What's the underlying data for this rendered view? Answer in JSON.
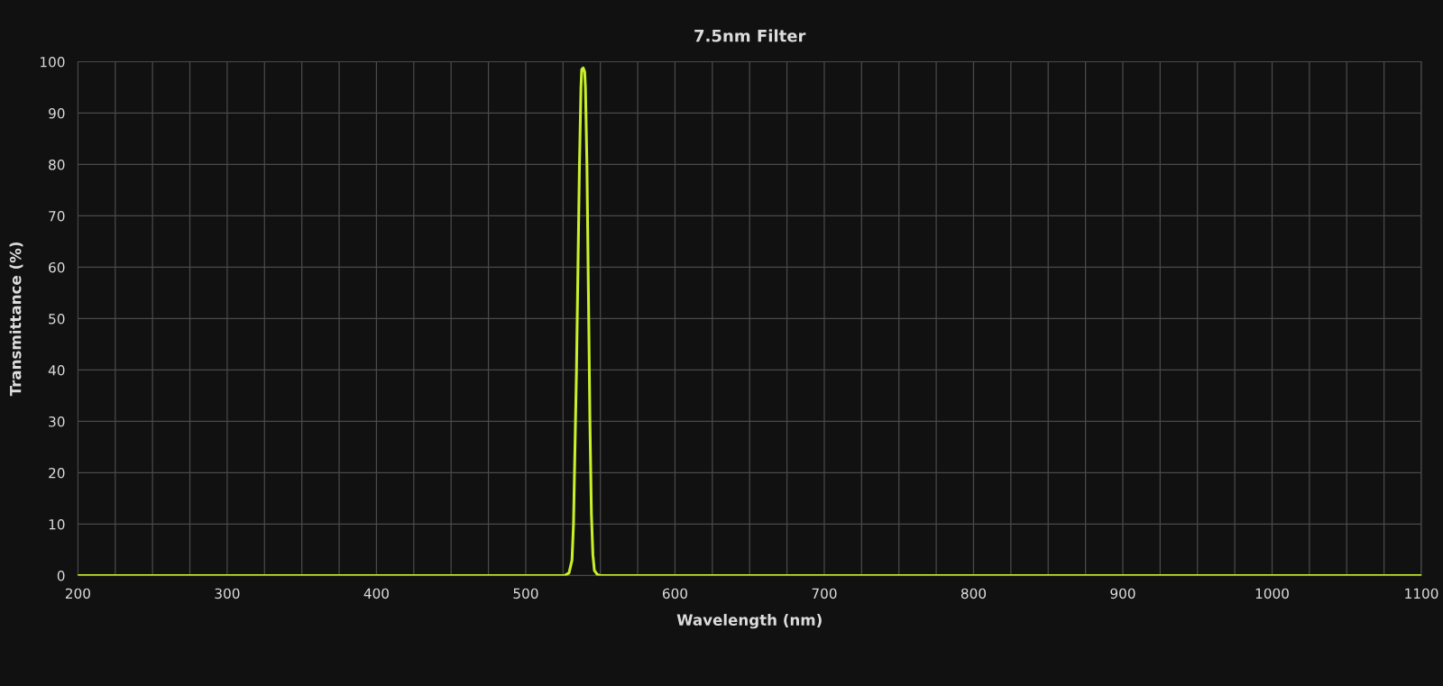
{
  "chart_data": {
    "type": "line",
    "title": "7.5nm Filter",
    "xlabel": "Wavelength (nm)",
    "ylabel": "Transmittance (%)",
    "x": [
      200,
      526,
      529,
      531,
      532,
      533,
      534,
      535,
      536,
      537,
      537.5,
      538.5,
      539.5,
      540,
      541,
      542,
      543,
      544,
      545,
      546,
      548,
      550,
      1100
    ],
    "series": [
      {
        "color": "#c8f02a",
        "values": [
          0,
          0,
          0.5,
          3,
          10,
          25,
          40,
          60,
          80,
          95,
          98.5,
          98.8,
          98,
          95,
          80,
          55,
          30,
          12,
          4,
          1,
          0.2,
          0,
          0
        ]
      }
    ],
    "xlim": [
      200,
      1100
    ],
    "ylim": [
      0,
      100
    ],
    "xticks": [
      200,
      {
        "value": 225,
        "label": null
      },
      {
        "value": 250,
        "label": null
      },
      {
        "value": 275,
        "label": null
      },
      300,
      {
        "value": 325,
        "label": null
      },
      {
        "value": 350,
        "label": null
      },
      {
        "value": 375,
        "label": null
      },
      400,
      {
        "value": 425,
        "label": null
      },
      {
        "value": 450,
        "label": null
      },
      {
        "value": 475,
        "label": null
      },
      500,
      {
        "value": 525,
        "label": null
      },
      {
        "value": 550,
        "label": null
      },
      {
        "value": 575,
        "label": null
      },
      600,
      {
        "value": 625,
        "label": null
      },
      {
        "value": 650,
        "label": null
      },
      {
        "value": 675,
        "label": null
      },
      700,
      {
        "value": 725,
        "label": null
      },
      {
        "value": 750,
        "label": null
      },
      {
        "value": 775,
        "label": null
      },
      800,
      {
        "value": 825,
        "label": null
      },
      {
        "value": 850,
        "label": null
      },
      {
        "value": 875,
        "label": null
      },
      900,
      {
        "value": 925,
        "label": null
      },
      {
        "value": 950,
        "label": null
      },
      {
        "value": 975,
        "label": null
      },
      1000,
      {
        "value": 1025,
        "label": null
      },
      {
        "value": 1050,
        "label": null
      },
      {
        "value": 1075,
        "label": null
      },
      1100
    ],
    "yticks": [
      0,
      10,
      20,
      30,
      40,
      50,
      60,
      70,
      80,
      90,
      100
    ],
    "grid": true,
    "marker": "none",
    "line_style": "solid"
  }
}
